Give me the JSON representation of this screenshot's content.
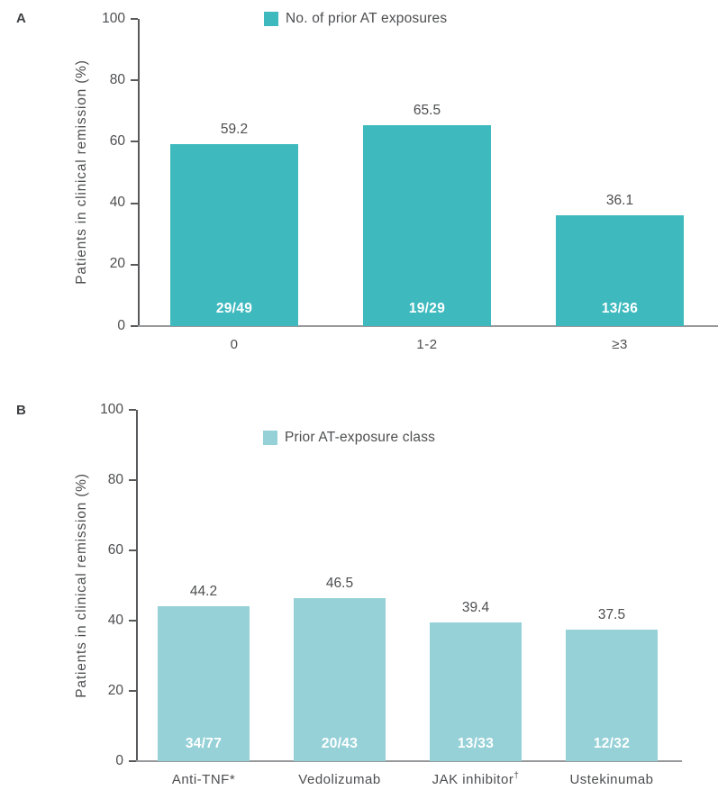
{
  "chart_data": [
    {
      "type": "bar",
      "panel_label": "A",
      "legend_label": "No. of prior AT exposures",
      "legend_position": "top-center",
      "ylabel": "Patients in clinical remission (%)",
      "ylim": [
        0,
        100
      ],
      "yticks": [
        0,
        20,
        40,
        60,
        80,
        100
      ],
      "grid": false,
      "bar_color": "#3eb9be",
      "categories": [
        {
          "label": "0",
          "sup": ""
        },
        {
          "label": "1-2",
          "sup": ""
        },
        {
          "label": "≥3",
          "sup": ""
        }
      ],
      "values": [
        59.2,
        65.5,
        36.1
      ],
      "bar_inner_labels": [
        "29/49",
        "19/29",
        "13/36"
      ]
    },
    {
      "type": "bar",
      "panel_label": "B",
      "legend_label": "Prior AT-exposure class",
      "legend_position": "top-center",
      "ylabel": "Patients in clinical remission (%)",
      "ylim": [
        0,
        100
      ],
      "yticks": [
        0,
        20,
        40,
        60,
        80,
        100
      ],
      "grid": false,
      "bar_color": "#96d1d8",
      "categories": [
        {
          "label": "Anti-TNF*",
          "sup": ""
        },
        {
          "label": "Vedolizumab",
          "sup": ""
        },
        {
          "label": "JAK inhibitor",
          "sup": "†"
        },
        {
          "label": "Ustekinumab",
          "sup": ""
        }
      ],
      "values": [
        44.2,
        46.5,
        39.4,
        37.5
      ],
      "bar_inner_labels": [
        "34/77",
        "20/43",
        "13/33",
        "12/32"
      ]
    }
  ],
  "colors": {
    "axis": "#58595b",
    "baseline": "#97999b",
    "text": "#4d4e50",
    "bar_inner_text": "#ffffff"
  }
}
